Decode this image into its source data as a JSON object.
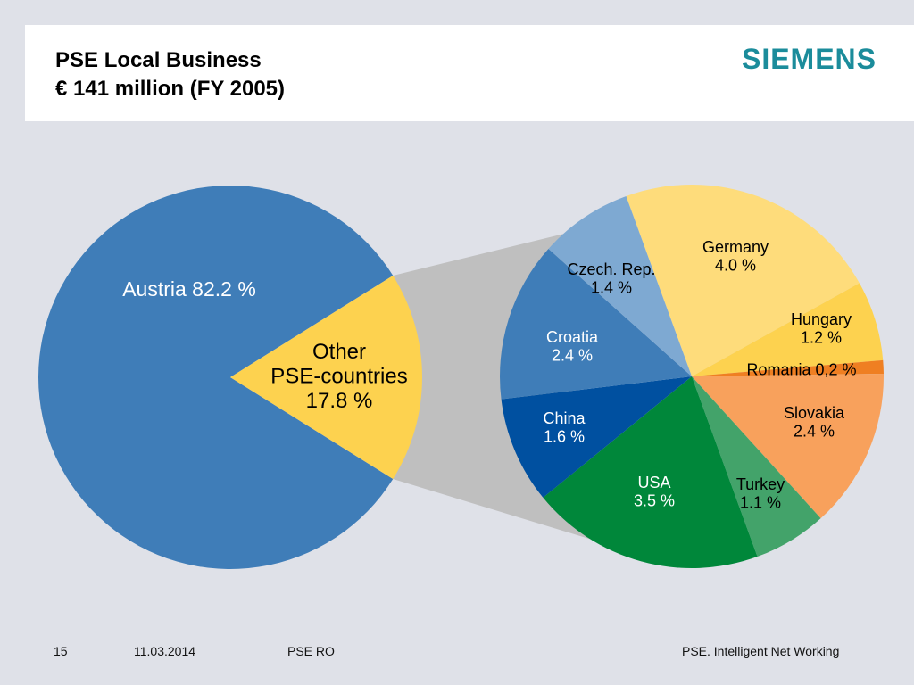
{
  "header": {
    "title_line1": "PSE Local Business",
    "title_line2": "€ 141 million (FY 2005)",
    "logo_text": "SIEMENS"
  },
  "footer": {
    "page_number": "15",
    "date": "11.03.2014",
    "department": "PSE RO",
    "tagline": "PSE. Intelligent Net Working"
  },
  "chart_data": [
    {
      "type": "pie",
      "slices": [
        {
          "label": "Austria 82.2 %",
          "value": 82.2,
          "color": "#3f7db8",
          "label_color": "#ffffff"
        },
        {
          "label": "Other\nPSE-countries\n17.8 %",
          "value": 17.8,
          "color": "#fdd24f",
          "label_color": "#000000"
        }
      ]
    },
    {
      "type": "pie",
      "slices": [
        {
          "label": "Germany\n4.0 %",
          "value": 4.0,
          "color": "#fedc7b",
          "label_color": "#000000"
        },
        {
          "label": "Hungary\n1.2 %",
          "value": 1.2,
          "color": "#fdd24f",
          "label_color": "#000000"
        },
        {
          "label": "Romania 0,2 %",
          "value": 0.2,
          "color": "#ef7f22",
          "label_color": "#000000"
        },
        {
          "label": "Slovakia\n2.4 %",
          "value": 2.4,
          "color": "#f8a15c",
          "label_color": "#000000"
        },
        {
          "label": "Turkey\n1.1 %",
          "value": 1.1,
          "color": "#43a36a",
          "label_color": "#000000"
        },
        {
          "label": "USA\n3.5 %",
          "value": 3.5,
          "color": "#00873a",
          "label_color": "#ffffff"
        },
        {
          "label": "China\n1.6 %",
          "value": 1.6,
          "color": "#0050a0",
          "label_color": "#ffffff"
        },
        {
          "label": "Croatia\n2.4 %",
          "value": 2.4,
          "color": "#3f7db8",
          "label_color": "#ffffff"
        },
        {
          "label": "Czech. Rep.\n1.4 %",
          "value": 1.4,
          "color": "#7ea9d2",
          "label_color": "#000000"
        }
      ]
    }
  ]
}
